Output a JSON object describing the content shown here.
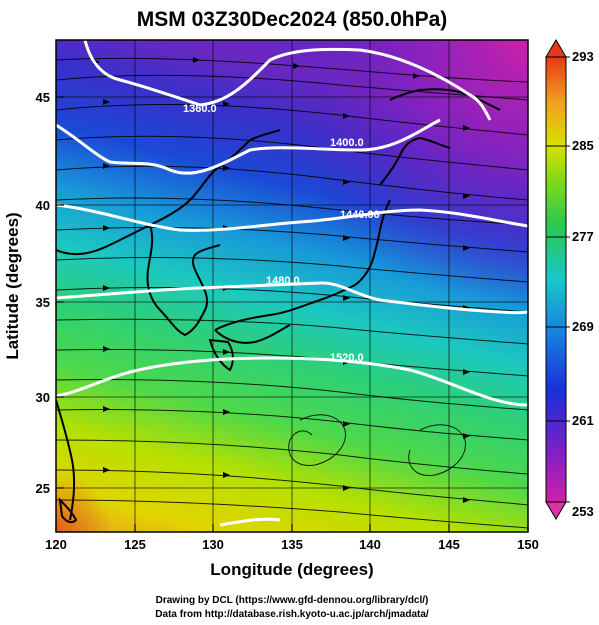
{
  "title": "MSM 03Z30Dec2024 (850.0hPa)",
  "xlabel": "Longitude (degrees)",
  "ylabel": "Latitude  (degrees)",
  "x_ticks": [
    "120",
    "125",
    "130",
    "135",
    "140",
    "145",
    "150"
  ],
  "y_ticks": [
    "25",
    "30",
    "35",
    "40",
    "45"
  ],
  "colorbar_ticks": [
    "293",
    "285",
    "277",
    "269",
    "261",
    "253"
  ],
  "contour_labels": [
    "1360.0",
    "1400.0",
    "1440.00",
    "1480.0",
    "1520.0"
  ],
  "credit_line1": "Drawing by DCL (https://www.gfd-dennou.org/library/dcl/)",
  "credit_line2": "Data from http://database.rish.kyoto-u.ac.jp/arch/jmadata/",
  "map": {
    "lon_range": [
      120,
      150
    ],
    "lat_range": [
      22.4,
      47.6
    ],
    "field": "temperature (K), colored",
    "contours": "geopotential height, white",
    "vectors": "wind streamlines, black"
  },
  "colors": {
    "warm": "#e8a028",
    "yellow": "#e2e000",
    "green": "#3ac03a",
    "cyan": "#18c8c8",
    "blue": "#1840d8",
    "purple": "#a020c8",
    "magenta": "#d020a8"
  }
}
